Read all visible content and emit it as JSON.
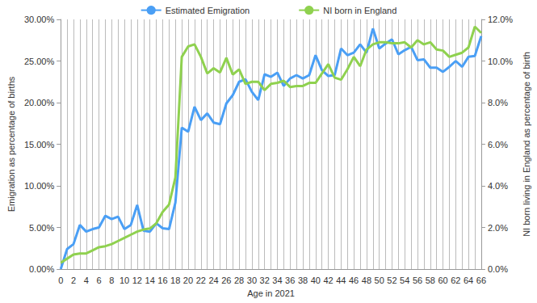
{
  "chart_data": {
    "type": "line",
    "x_label": "Age in 2021",
    "y_label": "Emigration as percentage of births",
    "y2_label": "NI born living in England as percentage of birth",
    "categories": [
      0,
      null,
      2,
      null,
      4,
      null,
      6,
      null,
      8,
      null,
      10,
      null,
      12,
      null,
      14,
      null,
      16,
      null,
      18,
      null,
      20,
      null,
      22,
      null,
      24,
      null,
      26,
      null,
      28,
      null,
      30,
      null,
      32,
      null,
      34,
      null,
      36,
      null,
      38,
      null,
      40,
      null,
      42,
      null,
      44,
      null,
      46,
      null,
      48,
      null,
      50,
      null,
      52,
      null,
      54,
      null,
      56,
      null,
      58,
      null,
      60,
      null,
      62,
      null,
      64,
      null,
      66
    ],
    "series": [
      {
        "name": "Estimated Emigration",
        "color": "#4a9ff5",
        "axis": "y",
        "values": [
          0.0,
          2.4,
          3.0,
          5.3,
          4.5,
          4.8,
          5.0,
          6.4,
          6.0,
          6.3,
          4.8,
          5.3,
          7.7,
          4.6,
          4.5,
          5.5,
          4.9,
          4.8,
          8.0,
          17.0,
          16.5,
          19.5,
          17.9,
          18.7,
          17.6,
          17.4,
          19.9,
          20.9,
          22.5,
          22.8,
          21.3,
          20.3,
          23.4,
          23.1,
          23.6,
          22.0,
          22.9,
          23.3,
          22.9,
          23.3,
          25.7,
          23.9,
          23.2,
          23.3,
          26.5,
          25.7,
          26.0,
          27.0,
          26.0,
          28.9,
          26.5,
          27.1,
          27.6,
          25.8,
          26.3,
          26.7,
          25.1,
          25.2,
          24.2,
          24.2,
          23.7,
          24.3,
          25.0,
          24.3,
          25.5,
          25.6,
          28.0
        ]
      },
      {
        "name": "NI born in England",
        "color": "#8fd14f",
        "axis": "y2",
        "values": [
          0.3,
          0.5,
          0.7,
          0.75,
          0.75,
          0.9,
          1.05,
          1.1,
          1.2,
          1.35,
          1.5,
          1.65,
          1.8,
          1.9,
          1.95,
          2.2,
          2.75,
          3.1,
          4.4,
          10.2,
          10.7,
          10.8,
          10.2,
          9.4,
          9.65,
          9.45,
          10.15,
          9.35,
          9.6,
          8.9,
          9.0,
          9.0,
          8.6,
          8.9,
          8.95,
          9.05,
          8.75,
          8.8,
          8.8,
          8.95,
          8.95,
          9.4,
          9.85,
          9.2,
          9.1,
          9.6,
          10.2,
          9.75,
          10.55,
          10.8,
          10.9,
          10.9,
          10.85,
          10.85,
          10.9,
          10.65,
          11.0,
          10.8,
          10.9,
          10.55,
          10.5,
          10.2,
          10.3,
          10.4,
          10.65,
          11.65,
          11.35
        ]
      }
    ],
    "ylim": [
      0,
      30
    ],
    "yticks": [
      {
        "value": 0,
        "label": "0.00%"
      },
      {
        "value": 5,
        "label": "5.00%"
      },
      {
        "value": 10,
        "label": "10.00%"
      },
      {
        "value": 15,
        "label": "15.00%"
      },
      {
        "value": 20,
        "label": "20.00%"
      },
      {
        "value": 25,
        "label": "25.00%"
      },
      {
        "value": 30,
        "label": "30.00%"
      }
    ],
    "y2lim": [
      0,
      12
    ],
    "y2ticks": [
      {
        "value": 0,
        "label": "0.0%"
      },
      {
        "value": 2,
        "label": "2.0%"
      },
      {
        "value": 4,
        "label": "4.0%"
      },
      {
        "value": 6,
        "label": "6.0%"
      },
      {
        "value": 8,
        "label": "8.0%"
      },
      {
        "value": 10,
        "label": "10.0%"
      },
      {
        "value": 12,
        "label": "12.0%"
      }
    ],
    "grid": true,
    "legend": "top"
  }
}
